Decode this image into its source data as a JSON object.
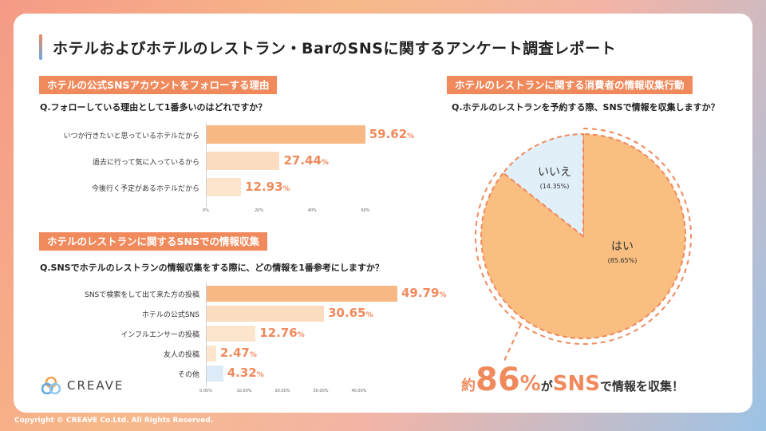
{
  "title": "ホテルおよびホテルのレストラン・BarのSNSに関するアンケート調査レポート",
  "section1": {
    "label": "ホテルの公式SNSアカウントをフォローする理由",
    "question": "Q.フォローしている理由として1番多いのはどれですか？"
  },
  "section2": {
    "label": "ホテルのレストランに関するSNSでの情報収集",
    "question": "Q.SNSでホテルのレストランの情報収集をする際に、どの情報を1番参考にしますか？"
  },
  "section3": {
    "label": "ホテルのレストランに関する消費者の情報収集行動",
    "question": "Q.ホテルのレストランを予約する際、SNSで情報を収集しますか？"
  },
  "summary": {
    "prefix": "約",
    "number": "86",
    "pct": "%",
    "mid": "が",
    "sns": "SNS",
    "suffix": "で情報を収集！"
  },
  "logo": "CREAVE",
  "copyright": "Copyright © CREAVE Co.Ltd. All Rights Reserved.",
  "colors": {
    "accent": "#f08a5d",
    "bar1": "#f8b883",
    "bar2": "#fbdcc0",
    "bar3": "#fce4cd",
    "bar_blue": "#dcebf7",
    "pie_yes": "#f9be80",
    "pie_no": "#e1eff9"
  },
  "chart_data": [
    {
      "type": "bar",
      "orientation": "horizontal",
      "categories": [
        "いつか行きたいと思っているホテルだから",
        "過去に行って気に入っているから",
        "今後行く予定があるホテルだから"
      ],
      "values": [
        59.62,
        27.44,
        12.93
      ],
      "value_labels": [
        "59.62",
        "27.44",
        "12.93"
      ],
      "unit": "%",
      "ticks": [
        "0%",
        "20%",
        "40%",
        "60%"
      ],
      "xlim": [
        0,
        60
      ]
    },
    {
      "type": "bar",
      "orientation": "horizontal",
      "categories": [
        "SNSで検索をして出て来た方の投稿",
        "ホテルの公式SNS",
        "インフルエンサーの投稿",
        "友人の投稿",
        "その他"
      ],
      "values": [
        49.79,
        30.65,
        12.76,
        2.47,
        4.32
      ],
      "value_labels": [
        "49.79",
        "30.65",
        "12.76",
        "2.47",
        "4.32"
      ],
      "unit": "%",
      "ticks": [
        "0.00%",
        "10.00%",
        "20.00%",
        "30.00%",
        "40.00%"
      ],
      "xlim": [
        0,
        50
      ]
    },
    {
      "type": "pie",
      "slices": [
        {
          "label": "はい",
          "value": 85.65,
          "value_label": "(85.65%)"
        },
        {
          "label": "いいえ",
          "value": 14.35,
          "value_label": "(14.35%)"
        }
      ]
    }
  ]
}
